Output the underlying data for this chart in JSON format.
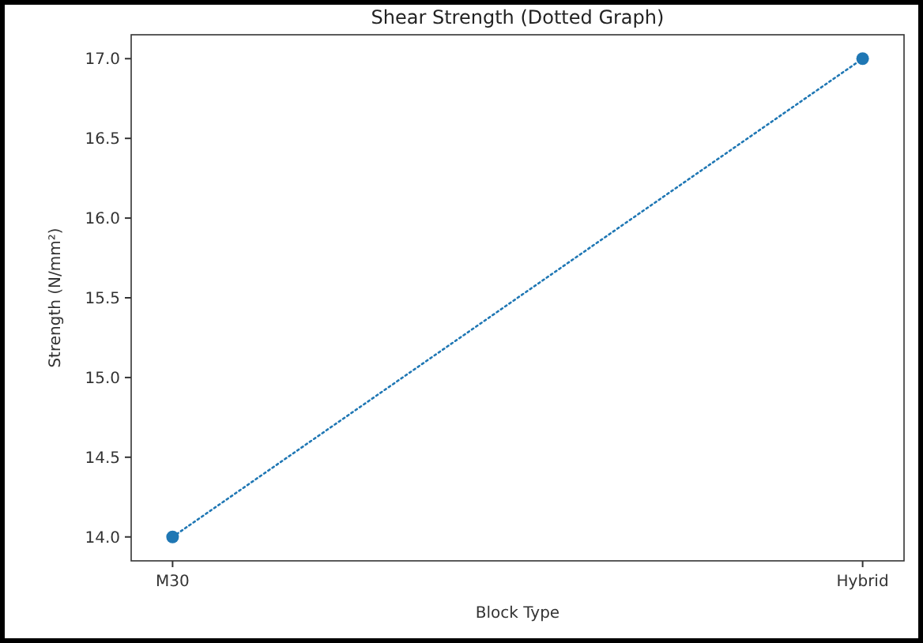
{
  "chart_data": {
    "type": "line",
    "title": "Shear Strength (Dotted Graph)",
    "xlabel": "Block Type",
    "ylabel": "Strength (N/mm²)",
    "categories": [
      "M30",
      "Hybrid"
    ],
    "series": [
      {
        "color": "#1f77b4",
        "values": [
          14.0,
          17.0
        ]
      }
    ],
    "ylim": [
      13.85,
      17.15
    ],
    "yticks": [
      {
        "value": 14,
        "label": "14.0"
      },
      {
        "value": 14.5,
        "label": "14.5"
      },
      {
        "value": 15,
        "label": "15.0"
      },
      {
        "value": 15.5,
        "label": "15.5"
      },
      {
        "value": 16,
        "label": "16.0"
      },
      {
        "value": 16.5,
        "label": "16.5"
      },
      {
        "value": 17,
        "label": "17.0"
      }
    ],
    "marker": "circle",
    "line_style": "dotted",
    "grid": false
  }
}
